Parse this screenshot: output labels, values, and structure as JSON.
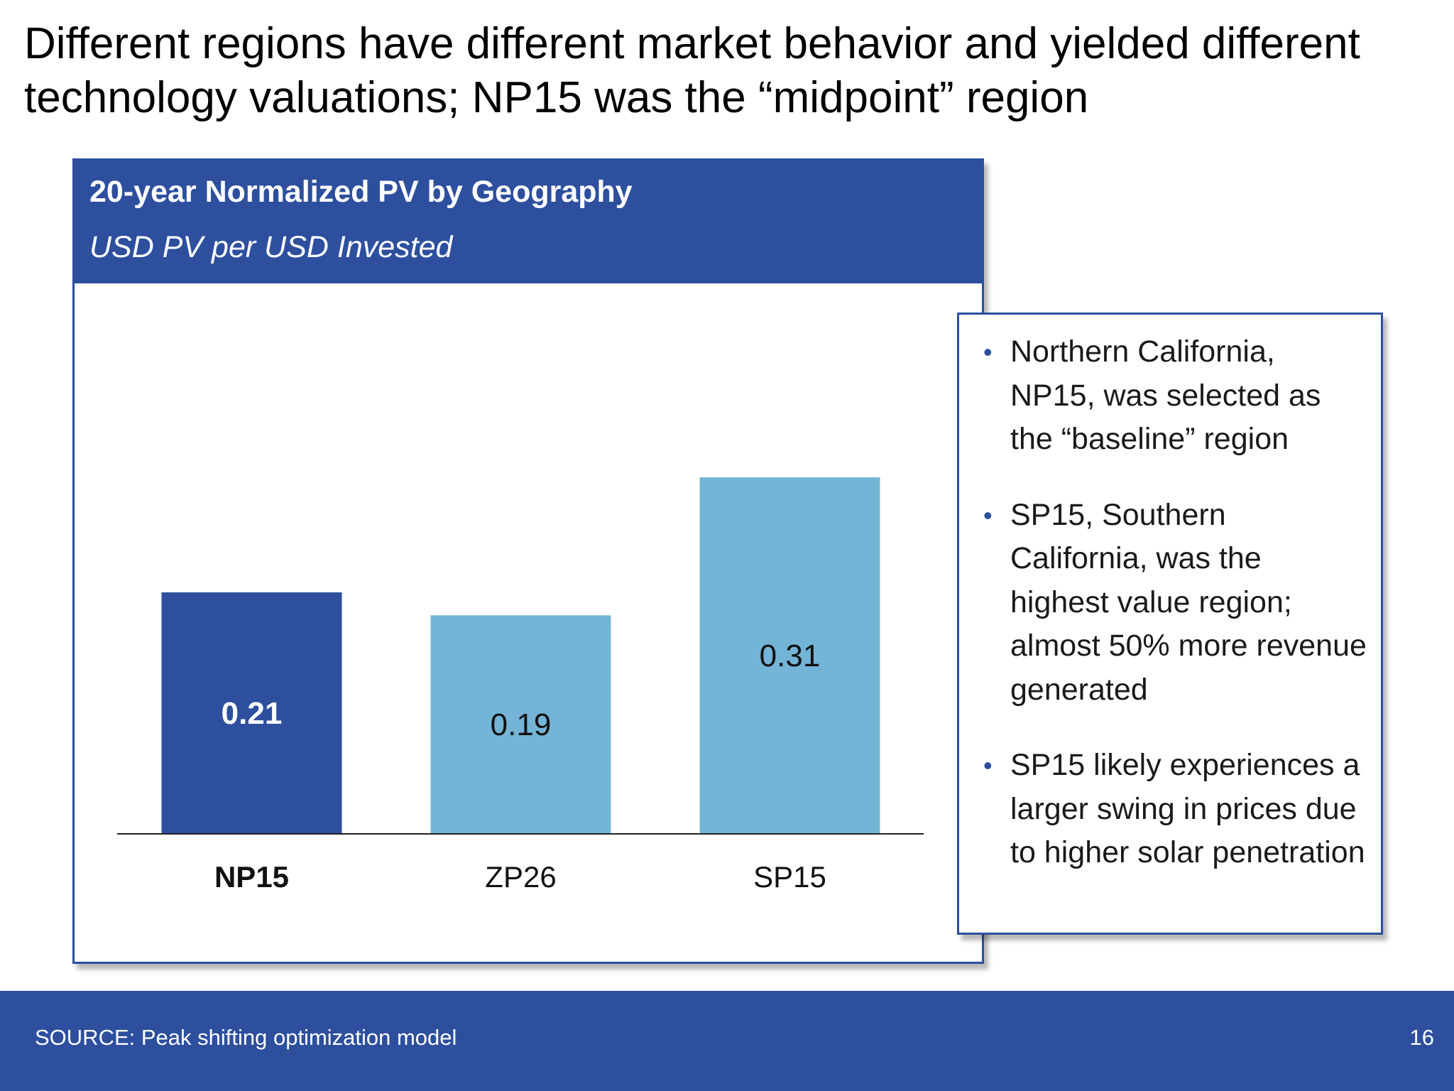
{
  "slide": {
    "title": "Different regions have different market behavior and yielded different\ntechnology valuations; NP15 was the “midpoint” region",
    "notes": [
      "Northern California, NP15, was selected as the “baseline” region",
      "SP15, Southern California, was the highest value region; almost 50% more revenue generated",
      "SP15 likely experiences a larger swing in prices due to higher solar penetration"
    ],
    "footer_source": "SOURCE: Peak shifting optimization model",
    "page_number": "16"
  },
  "chart_data": {
    "type": "bar",
    "title": "20-year Normalized PV by Geography",
    "subtitle": "USD PV per USD Invested",
    "categories": [
      "NP15",
      "ZP26",
      "SP15"
    ],
    "values": [
      0.21,
      0.19,
      0.31
    ],
    "data_labels": [
      "0.21",
      "0.19",
      "0.31"
    ],
    "highlight_category": "NP15",
    "ylim": [
      0,
      0.31
    ],
    "grid": false,
    "legend": "none",
    "colors": {
      "highlight": "#2d4f9e",
      "default": "#74b4d6",
      "highlight_label": "#ffffff",
      "default_label": "#111111"
    }
  }
}
